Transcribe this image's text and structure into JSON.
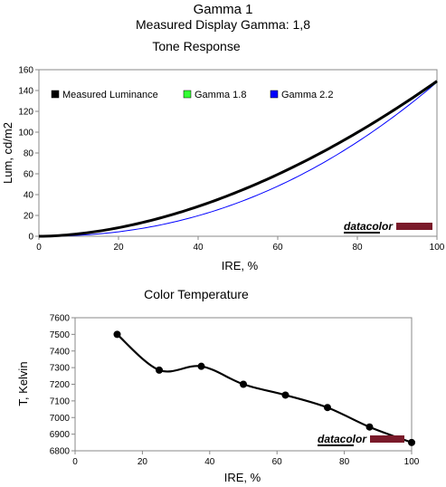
{
  "header": {
    "title": "Gamma 1",
    "subtitle": "Measured Display Gamma: 1,8"
  },
  "brand": {
    "logo_text": "datacolor",
    "bar_color": "#7a1a2a"
  },
  "chart_data": [
    {
      "type": "line",
      "title": "Tone Response",
      "xlabel": "IRE, %",
      "ylabel": "Lum, cd/m2",
      "xlim": [
        0,
        100
      ],
      "ylim": [
        0,
        160
      ],
      "xticks": [
        0,
        20,
        40,
        60,
        80,
        100
      ],
      "yticks": [
        0,
        20,
        40,
        60,
        80,
        100,
        120,
        140,
        160
      ],
      "grid": false,
      "legend": "top",
      "series": [
        {
          "name": "Measured Luminance",
          "color": "#000000",
          "gamma": 1.8,
          "max": 149,
          "x": [
            0,
            10,
            20,
            30,
            40,
            50,
            60,
            70,
            80,
            90,
            100
          ],
          "y": [
            0,
            2.4,
            8.3,
            17.6,
            28.9,
            42.8,
            59.1,
            77.7,
            98.7,
            121.8,
            149
          ]
        },
        {
          "name": "Gamma 1.8",
          "color": "#00cc00",
          "gamma": 1.8,
          "max": 148,
          "x": [
            0,
            10,
            20,
            30,
            40,
            50,
            60,
            70,
            80,
            90,
            100
          ],
          "y": [
            0,
            2.3,
            8.2,
            17.3,
            28.7,
            42.5,
            58.7,
            77.2,
            98,
            121,
            148
          ]
        },
        {
          "name": "Gamma 2.2",
          "color": "#0000ff",
          "gamma": 2.2,
          "max": 148,
          "x": [
            0,
            10,
            20,
            30,
            40,
            50,
            60,
            70,
            80,
            90,
            100
          ],
          "y": [
            0,
            0.9,
            4.1,
            10.0,
            19.0,
            32.2,
            48.1,
            67.8,
            89.2,
            116.4,
            148
          ]
        }
      ]
    },
    {
      "type": "line",
      "title": "Color Temperature",
      "xlabel": "IRE, %",
      "ylabel": "T, Kelvin",
      "xlim": [
        0,
        100
      ],
      "ylim": [
        6800,
        7600
      ],
      "xticks": [
        0,
        20,
        40,
        60,
        80,
        100
      ],
      "yticks": [
        6800,
        6900,
        7000,
        7100,
        7200,
        7300,
        7400,
        7500,
        7600
      ],
      "grid": false,
      "series": [
        {
          "color": "#000000",
          "x": [
            12.5,
            25,
            37.5,
            50,
            62.5,
            75,
            87.5,
            100
          ],
          "y": [
            7500,
            7285,
            7308,
            7200,
            7135,
            7060,
            6943,
            6850
          ]
        }
      ]
    }
  ]
}
